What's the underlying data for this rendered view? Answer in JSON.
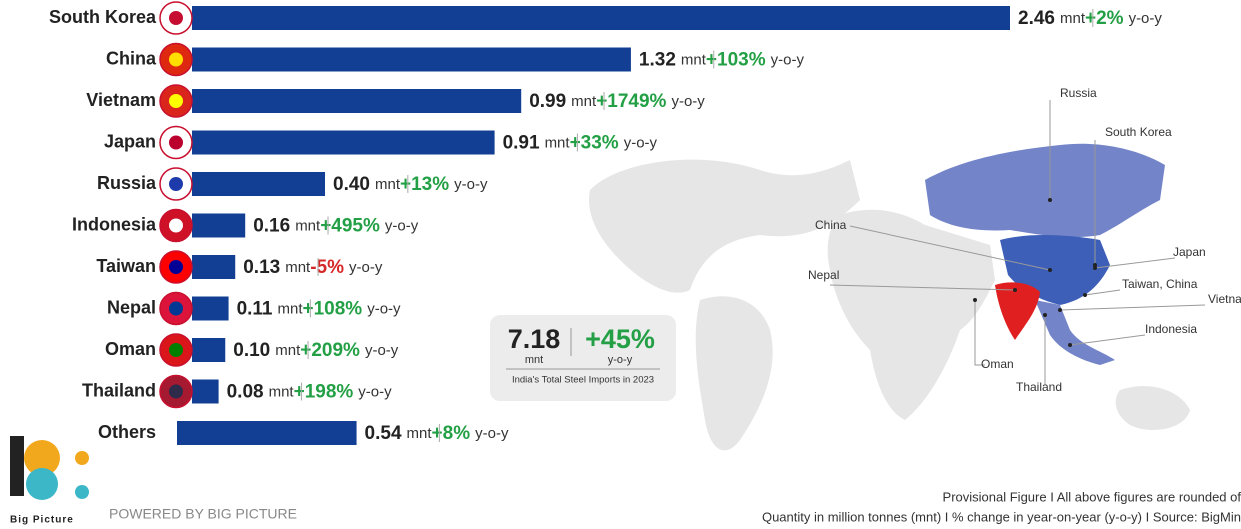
{
  "chart_data": {
    "type": "bar",
    "orientation": "horizontal",
    "color": "#123f94",
    "categories": [
      "South Korea",
      "China",
      "Vietnam",
      "Japan",
      "Russia",
      "Indonesia",
      "Taiwan",
      "Nepal",
      "Oman",
      "Thailand",
      "Others"
    ],
    "values": [
      2.46,
      1.32,
      0.99,
      0.91,
      0.4,
      0.16,
      0.13,
      0.11,
      0.1,
      0.08,
      0.54
    ],
    "value_labels": [
      "2.46",
      "1.32",
      "0.99",
      "0.91",
      "0.40",
      "0.16",
      "0.13",
      "0.11",
      "0.10",
      "0.08",
      "0.54"
    ],
    "unit": "mnt",
    "yoy_labels": [
      "+2%",
      "+103%",
      "+1749%",
      "+33%",
      "+13%",
      "+495%",
      "-5%",
      "+108%",
      "+209%",
      "+198%",
      "+8%"
    ],
    "yoy_suffix": "y-o-y",
    "positive_color": "#23a045",
    "negative_color": "#d62828"
  },
  "summary": {
    "total": 7.18,
    "total_unit": "mnt",
    "change": "+45%",
    "change_unit": "y-o-y",
    "caption": "India's Total Steel Imports in 2023"
  },
  "map": {
    "labels": [
      "Russia",
      "South Korea",
      "China",
      "Japan",
      "Nepal",
      "Taiwan, China",
      "Vietna",
      "Indonesia",
      "Oman",
      "Thailand"
    ]
  },
  "footer": {
    "note": "Provisional Figure  I  All above figures are rounded of",
    "source": "Quantity in million tonnes (mnt)  I  % change in year-on-year (y-o-y)  I  Source: BigMin",
    "powered": "POWERED BY BIG PICTURE",
    "logo": "Big Picture"
  }
}
